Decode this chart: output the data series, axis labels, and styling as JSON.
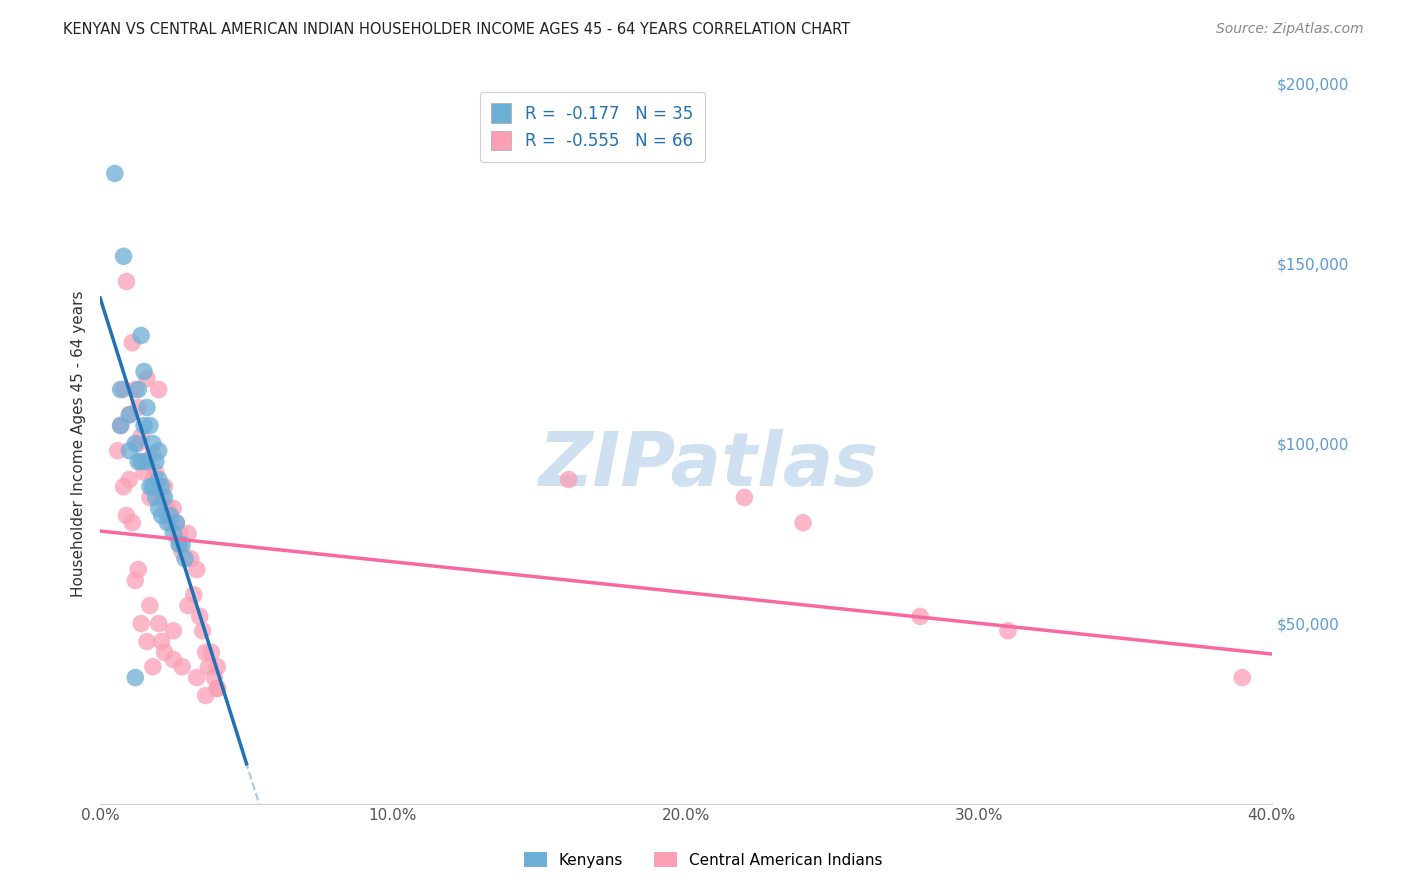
{
  "title": "KENYAN VS CENTRAL AMERICAN INDIAN HOUSEHOLDER INCOME AGES 45 - 64 YEARS CORRELATION CHART",
  "source": "Source: ZipAtlas.com",
  "ylabel": "Householder Income Ages 45 - 64 years",
  "xlim": [
    0.0,
    0.4
  ],
  "ylim": [
    0,
    200000
  ],
  "xtick_labels": [
    "0.0%",
    "10.0%",
    "20.0%",
    "30.0%",
    "40.0%"
  ],
  "xtick_values": [
    0.0,
    0.1,
    0.2,
    0.3,
    0.4
  ],
  "ytick_labels": [
    "$50,000",
    "$100,000",
    "$150,000",
    "$200,000"
  ],
  "ytick_values": [
    50000,
    100000,
    150000,
    200000
  ],
  "kenyan_R": -0.177,
  "kenyan_N": 35,
  "central_R": -0.555,
  "central_N": 66,
  "kenyan_color": "#6baed6",
  "central_color": "#fa9fb5",
  "kenyan_line_color": "#2171b5",
  "central_line_color": "#f768a1",
  "dashed_line_color": "#aac8e8",
  "background_color": "#ffffff",
  "grid_color": "#cccccc",
  "watermark_color": "#cfe0f0",
  "kenyan_x": [
    0.007,
    0.007,
    0.01,
    0.01,
    0.012,
    0.013,
    0.013,
    0.014,
    0.014,
    0.015,
    0.015,
    0.016,
    0.016,
    0.017,
    0.017,
    0.018,
    0.018,
    0.019,
    0.019,
    0.02,
    0.02,
    0.02,
    0.021,
    0.021,
    0.022,
    0.023,
    0.024,
    0.025,
    0.026,
    0.027,
    0.028,
    0.029,
    0.005,
    0.008,
    0.012
  ],
  "kenyan_y": [
    115000,
    105000,
    108000,
    98000,
    100000,
    115000,
    95000,
    130000,
    95000,
    120000,
    105000,
    110000,
    95000,
    105000,
    88000,
    100000,
    88000,
    95000,
    85000,
    98000,
    90000,
    82000,
    88000,
    80000,
    85000,
    78000,
    80000,
    75000,
    78000,
    72000,
    72000,
    68000,
    175000,
    152000,
    35000
  ],
  "central_x": [
    0.007,
    0.008,
    0.009,
    0.01,
    0.011,
    0.012,
    0.013,
    0.013,
    0.014,
    0.015,
    0.015,
    0.016,
    0.017,
    0.018,
    0.018,
    0.019,
    0.02,
    0.021,
    0.022,
    0.023,
    0.023,
    0.024,
    0.025,
    0.026,
    0.027,
    0.027,
    0.028,
    0.03,
    0.03,
    0.031,
    0.032,
    0.033,
    0.034,
    0.035,
    0.036,
    0.037,
    0.038,
    0.039,
    0.04,
    0.04,
    0.008,
    0.01,
    0.011,
    0.012,
    0.014,
    0.016,
    0.018,
    0.02,
    0.022,
    0.025,
    0.028,
    0.033,
    0.036,
    0.04,
    0.006,
    0.009,
    0.013,
    0.017,
    0.021,
    0.025,
    0.16,
    0.22,
    0.24,
    0.28,
    0.31,
    0.39
  ],
  "central_y": [
    105000,
    115000,
    145000,
    108000,
    128000,
    115000,
    110000,
    100000,
    102000,
    92000,
    95000,
    118000,
    85000,
    97000,
    90000,
    92000,
    115000,
    85000,
    88000,
    82000,
    80000,
    78000,
    82000,
    78000,
    75000,
    72000,
    70000,
    55000,
    75000,
    68000,
    58000,
    65000,
    52000,
    48000,
    42000,
    38000,
    42000,
    35000,
    38000,
    32000,
    88000,
    90000,
    78000,
    62000,
    50000,
    45000,
    38000,
    50000,
    42000,
    48000,
    38000,
    35000,
    30000,
    32000,
    98000,
    80000,
    65000,
    55000,
    45000,
    40000,
    90000,
    85000,
    78000,
    52000,
    48000,
    35000
  ]
}
